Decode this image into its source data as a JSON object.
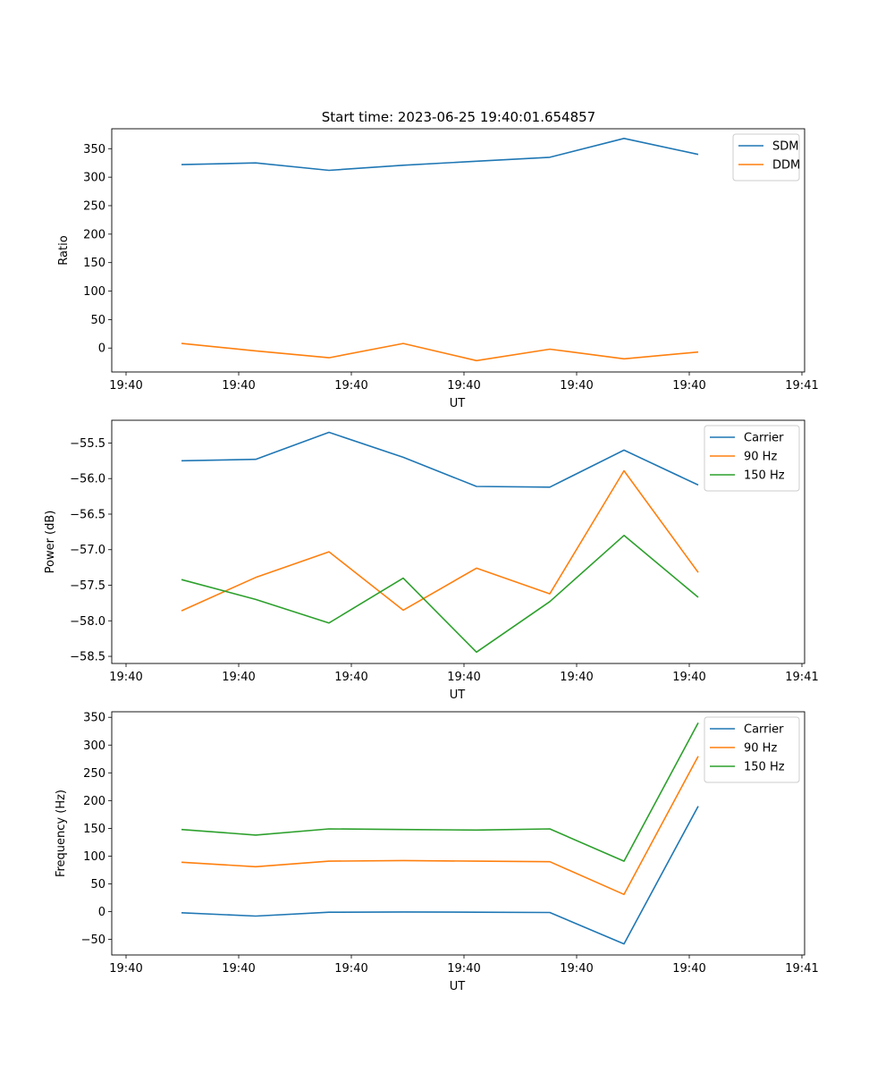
{
  "figure": {
    "title": "Start time: 2023-06-25 19:40:01.654857"
  },
  "chart_data": [
    {
      "type": "line",
      "title": "Start time: 2023-06-25 19:40:01.654857",
      "xlabel": "UT",
      "ylabel": "Ratio",
      "xticks": [
        "19:40",
        "19:40",
        "19:40",
        "19:40",
        "19:40",
        "19:40",
        "19:41"
      ],
      "yticks": [
        "0",
        "50",
        "100",
        "150",
        "200",
        "250",
        "300",
        "350"
      ],
      "ylim": [
        -42,
        385
      ],
      "grid": false,
      "legend_position": "upper right",
      "x": [
        0,
        1,
        2,
        3,
        4,
        5,
        6,
        7
      ],
      "series": [
        {
          "name": "SDM",
          "color": "#1f77b4",
          "values": [
            322,
            325,
            312,
            321,
            328,
            335,
            368,
            340
          ]
        },
        {
          "name": "DDM",
          "color": "#ff7f0e",
          "values": [
            8,
            -5,
            -17,
            8,
            -22,
            -2,
            -19,
            -7
          ]
        }
      ]
    },
    {
      "type": "line",
      "title": "",
      "xlabel": "UT",
      "ylabel": "Power (dB)",
      "xticks": [
        "19:40",
        "19:40",
        "19:40",
        "19:40",
        "19:40",
        "19:40",
        "19:41"
      ],
      "yticks": [
        "−58.5",
        "−58.0",
        "−57.5",
        "−57.0",
        "−56.5",
        "−56.0",
        "−55.5"
      ],
      "ylim": [
        -58.6,
        -55.18
      ],
      "grid": false,
      "legend_position": "upper right",
      "x": [
        0,
        1,
        2,
        3,
        4,
        5,
        6,
        7
      ],
      "series": [
        {
          "name": "Carrier",
          "color": "#1f77b4",
          "values": [
            -55.75,
            -55.73,
            -55.35,
            -55.7,
            -56.11,
            -56.12,
            -55.6,
            -56.09
          ]
        },
        {
          "name": "90 Hz",
          "color": "#ff7f0e",
          "values": [
            -57.86,
            -57.39,
            -57.03,
            -57.85,
            -57.26,
            -57.62,
            -55.89,
            -57.32
          ]
        },
        {
          "name": "150 Hz",
          "color": "#2ca02c",
          "values": [
            -57.42,
            -57.7,
            -58.03,
            -57.4,
            -58.44,
            -57.73,
            -56.8,
            -57.67
          ]
        }
      ]
    },
    {
      "type": "line",
      "title": "",
      "xlabel": "UT",
      "ylabel": "Frequency (Hz)",
      "xticks": [
        "19:40",
        "19:40",
        "19:40",
        "19:40",
        "19:40",
        "19:40",
        "19:41"
      ],
      "yticks": [
        "−50",
        "0",
        "50",
        "100",
        "150",
        "200",
        "250",
        "300",
        "350"
      ],
      "ylim": [
        -78,
        360
      ],
      "grid": false,
      "legend_position": "upper right",
      "x": [
        0,
        1,
        2,
        3,
        4,
        5,
        6,
        7
      ],
      "series": [
        {
          "name": "Carrier",
          "color": "#1f77b4",
          "values": [
            -2,
            -8,
            -1,
            -0.5,
            -1,
            -1.5,
            -58,
            190
          ]
        },
        {
          "name": "90 Hz",
          "color": "#ff7f0e",
          "values": [
            89,
            81,
            91,
            92,
            91,
            90,
            31,
            280
          ]
        },
        {
          "name": "150 Hz",
          "color": "#2ca02c",
          "values": [
            148,
            138,
            149,
            148,
            147,
            149,
            91,
            340
          ]
        }
      ]
    }
  ]
}
